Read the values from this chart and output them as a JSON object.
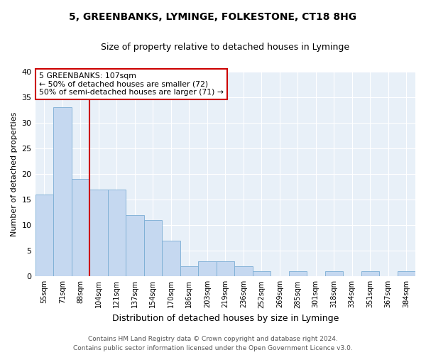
{
  "title1": "5, GREENBANKS, LYMINGE, FOLKESTONE, CT18 8HG",
  "title2": "Size of property relative to detached houses in Lyminge",
  "xlabel": "Distribution of detached houses by size in Lyminge",
  "ylabel": "Number of detached properties",
  "categories": [
    "55sqm",
    "71sqm",
    "88sqm",
    "104sqm",
    "121sqm",
    "137sqm",
    "154sqm",
    "170sqm",
    "186sqm",
    "203sqm",
    "219sqm",
    "236sqm",
    "252sqm",
    "269sqm",
    "285sqm",
    "301sqm",
    "318sqm",
    "334sqm",
    "351sqm",
    "367sqm",
    "384sqm"
  ],
  "values": [
    16,
    33,
    19,
    17,
    17,
    12,
    11,
    7,
    2,
    3,
    3,
    2,
    1,
    0,
    1,
    0,
    1,
    0,
    1,
    0,
    1
  ],
  "bar_color": "#c5d8f0",
  "bar_edge_color": "#7aadd4",
  "vline_color": "#cc0000",
  "annotation_text": "5 GREENBANKS: 107sqm\n← 50% of detached houses are smaller (72)\n50% of semi-detached houses are larger (71) →",
  "annotation_box_color": "#ffffff",
  "annotation_box_edge": "#cc0000",
  "ylim": [
    0,
    40
  ],
  "yticks": [
    0,
    5,
    10,
    15,
    20,
    25,
    30,
    35,
    40
  ],
  "footer": "Contains HM Land Registry data © Crown copyright and database right 2024.\nContains public sector information licensed under the Open Government Licence v3.0.",
  "bg_color": "#ffffff",
  "plot_bg": "#e8f0f8",
  "grid_color": "#ffffff",
  "title1_fontsize": 10,
  "title2_fontsize": 9
}
